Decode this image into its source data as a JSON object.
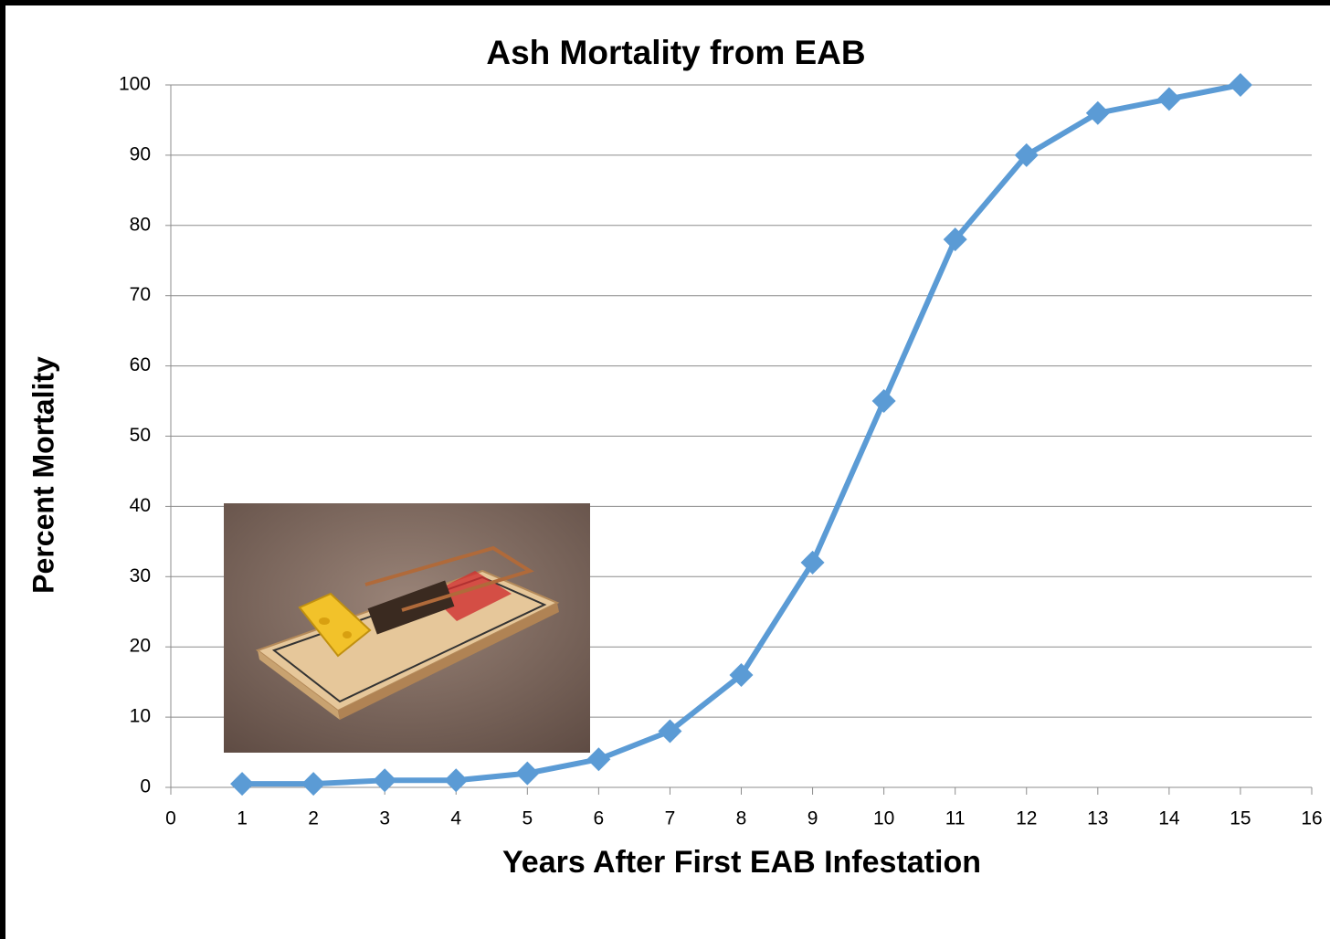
{
  "chart_data": {
    "type": "line",
    "title": "Ash Mortality from EAB",
    "x_label": "Years After First EAB Infestation",
    "y_label": "Percent Mortality",
    "x": [
      1,
      2,
      3,
      4,
      5,
      6,
      7,
      8,
      9,
      10,
      11,
      12,
      13,
      14,
      15
    ],
    "values": [
      0.5,
      0.5,
      1,
      1,
      2,
      4,
      8,
      16,
      32,
      55,
      78,
      90,
      96,
      98,
      100
    ],
    "color": "#5b9bd5",
    "xlim": [
      0,
      16
    ],
    "xticks": [
      0,
      1,
      2,
      3,
      4,
      5,
      6,
      7,
      8,
      9,
      10,
      11,
      12,
      13,
      14,
      15,
      16
    ],
    "ylim": [
      0,
      100
    ],
    "yticks": [
      0,
      10,
      20,
      30,
      40,
      50,
      60,
      70,
      80,
      90,
      100
    ],
    "grid": true
  }
}
